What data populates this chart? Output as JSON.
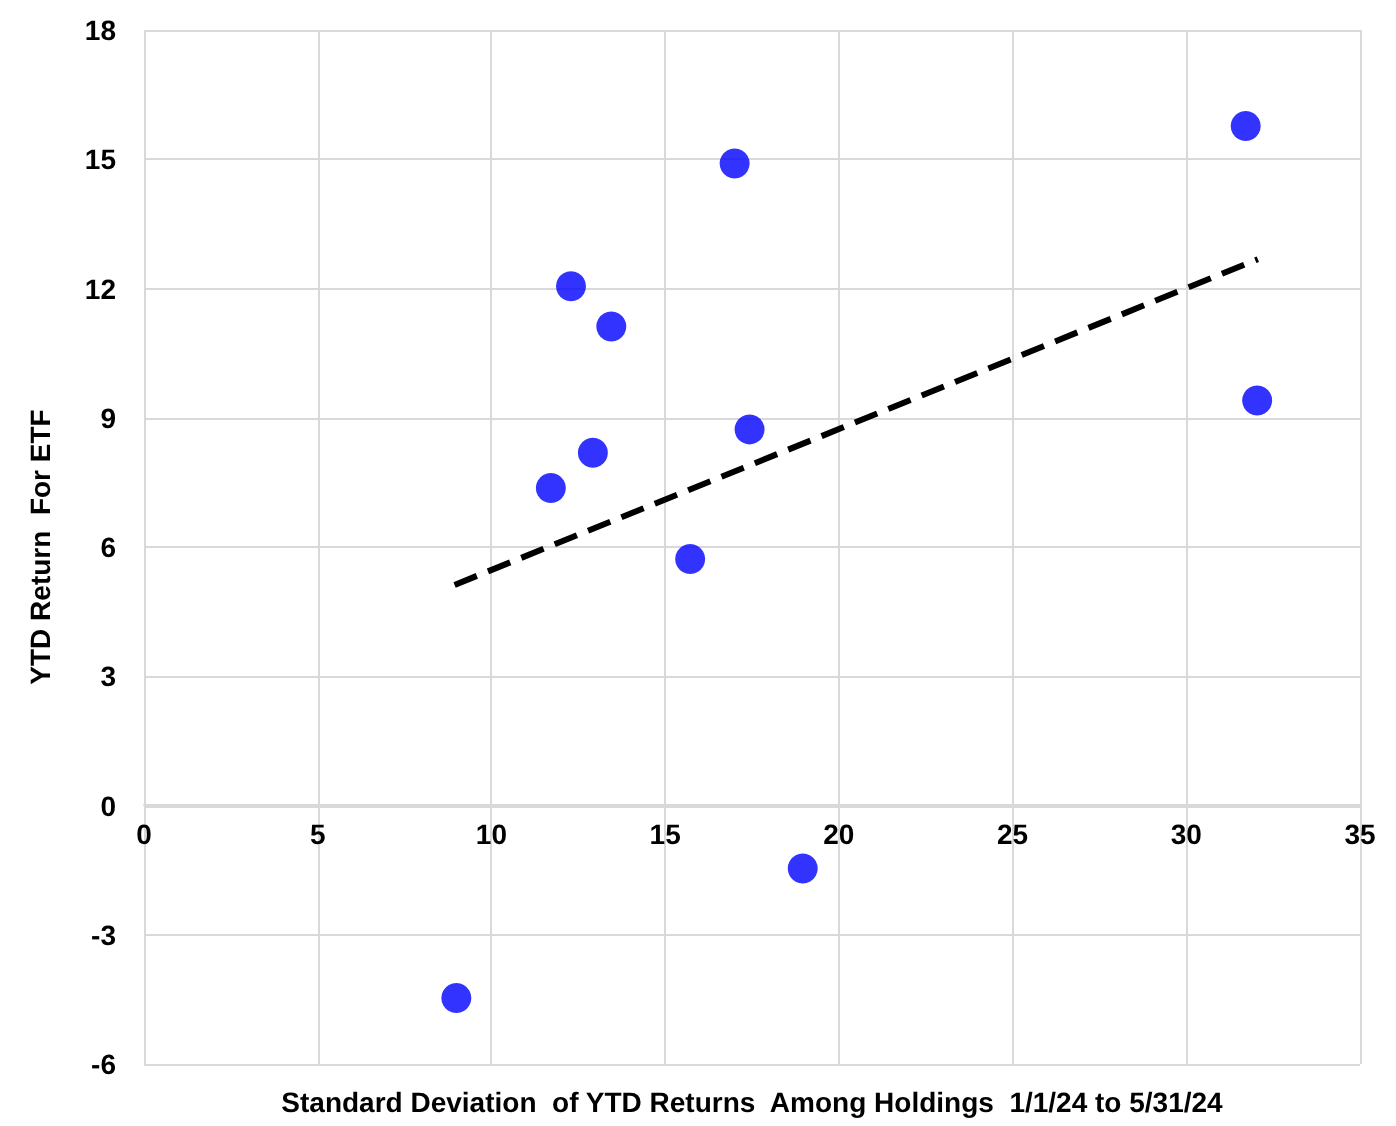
{
  "chart_data": {
    "type": "scatter",
    "xlabel": "Standard Deviation  of YTD Returns  Among Holdings  1/1/24 to 5/31/24",
    "ylabel": "YTD Return  For ETF",
    "xlim": [
      0,
      35
    ],
    "xticks": [
      0,
      5,
      10,
      15,
      20,
      25,
      30,
      35
    ],
    "ylim": [
      -6,
      18
    ],
    "yticks": [
      -6,
      -3,
      0,
      3,
      6,
      9,
      12,
      15,
      18
    ],
    "grid": true,
    "marker": "circle",
    "series": [
      {
        "color": "#0000ff",
        "x": [
          8.99,
          11.71,
          12.29,
          12.92,
          13.45,
          15.72,
          17.0,
          17.43,
          18.96,
          31.71,
          32.04
        ],
        "values": [
          -4.47,
          7.37,
          12.05,
          8.19,
          11.12,
          5.72,
          14.9,
          8.73,
          -1.46,
          15.77,
          9.4
        ]
      },
      {
        "type": "line",
        "color": "#000000",
        "line_style": "dashed",
        "marker": "none",
        "x": [
          8.94,
          32.06
        ],
        "values": [
          5.12,
          12.68
        ]
      }
    ]
  }
}
